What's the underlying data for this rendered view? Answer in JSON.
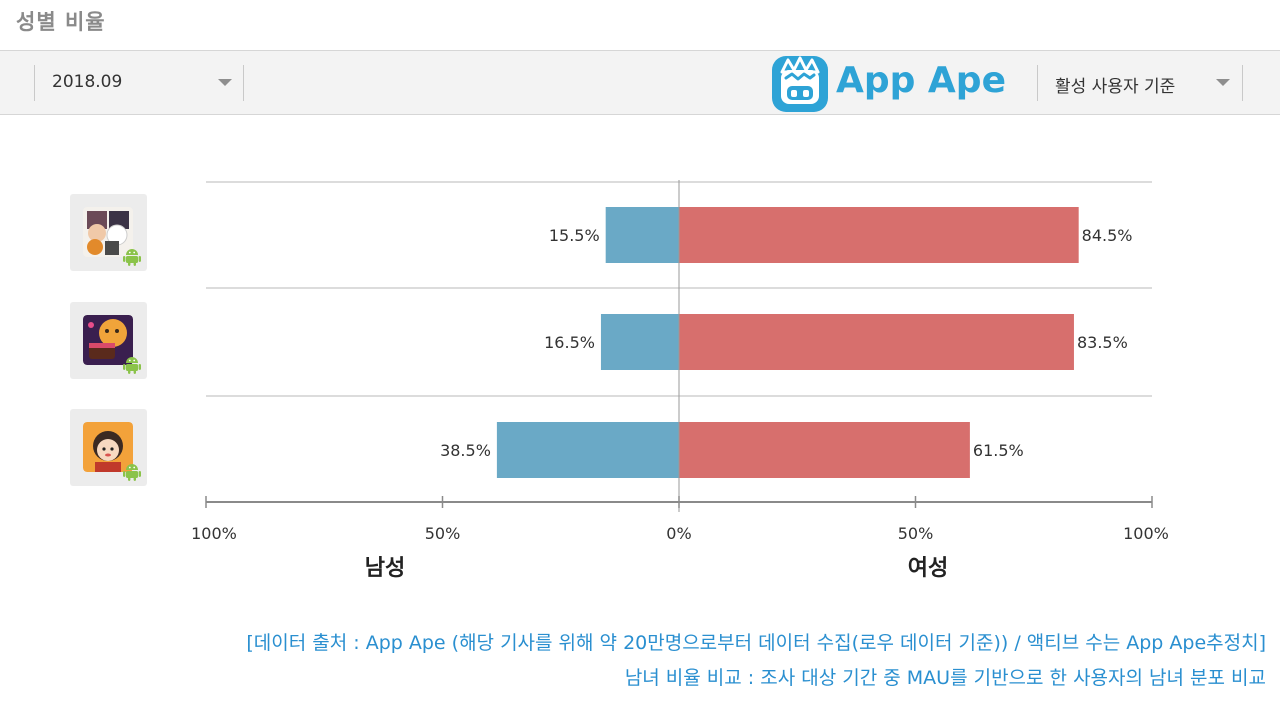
{
  "page": {
    "title": "성별 비율"
  },
  "toolbar": {
    "period_value": "2018.09",
    "logo_text": "App Ape",
    "basis_value": "활성 사용자 기준"
  },
  "icons": {
    "dropdown": "chevron-down-icon",
    "logo": "app-ape-monkey-icon",
    "platform": "android-icon"
  },
  "colors": {
    "male": "#6aa9c6",
    "female": "#d76f6d",
    "accent": "#2ea3d6"
  },
  "chart_data": {
    "type": "bar",
    "orientation": "horizontal-diverging",
    "categories": [
      "app-1",
      "app-2",
      "app-3"
    ],
    "series": [
      {
        "name": "남성",
        "values": [
          15.5,
          16.5,
          38.5
        ]
      },
      {
        "name": "여성",
        "values": [
          84.5,
          83.5,
          61.5
        ]
      }
    ],
    "value_labels": {
      "male": [
        "15.5%",
        "16.5%",
        "38.5%"
      ],
      "female": [
        "84.5%",
        "83.5%",
        "61.5%"
      ]
    },
    "x_ticks": [
      "100%",
      "50%",
      "0%",
      "50%",
      "100%"
    ],
    "xlim": [
      -100,
      100
    ],
    "grid": true,
    "group_labels": {
      "left": "남성",
      "right": "여성"
    }
  },
  "footer": {
    "line1": "[데이터 출처 : App Ape (해당 기사를 위해 약 20만명으로부터 데이터 수집(로우 데이터 기준)) / 액티브 수는 App Ape추정치]",
    "line2": "남녀 비율 비교 : 조사 대상 기간 중 MAU를 기반으로 한 사용자의 남녀  분포 비교"
  }
}
